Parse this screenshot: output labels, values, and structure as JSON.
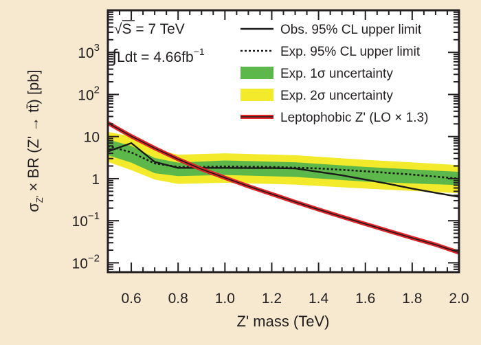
{
  "chart_data": {
    "type": "line",
    "title": "",
    "xlabel": "Z' mass (TeV)",
    "ylabel": "σZ' × BR (Z' → tt̄) [pb]",
    "xlim": [
      0.5,
      2.0
    ],
    "ylim": [
      0.006,
      10000
    ],
    "yscale": "log",
    "grid": false,
    "legend_position": "top-right",
    "x_ticks": [
      {
        "value": 0.6,
        "label": "0.6"
      },
      {
        "value": 0.8,
        "label": "0.8"
      },
      {
        "value": 1.0,
        "label": "1.0"
      },
      {
        "value": 1.2,
        "label": "1.2"
      },
      {
        "value": 1.4,
        "label": "1.4"
      },
      {
        "value": 1.6,
        "label": "1.6"
      },
      {
        "value": 1.8,
        "label": "1.8"
      },
      {
        "value": 2.0,
        "label": "2.0"
      }
    ],
    "y_ticks": [
      {
        "value": 0.01,
        "base": "10",
        "exp": "−2"
      },
      {
        "value": 0.1,
        "base": "10",
        "exp": "−1"
      },
      {
        "value": 1,
        "base": "1",
        "exp": ""
      },
      {
        "value": 10,
        "base": "10",
        "exp": ""
      },
      {
        "value": 100,
        "base": "10",
        "exp": "2"
      },
      {
        "value": 1000,
        "base": "10",
        "exp": "3"
      }
    ],
    "annotations": {
      "energy": {
        "root": "√",
        "text": "S = 7 TeV"
      },
      "luminosity": {
        "integral": "∫",
        "text": "Ldt = 4.66fb",
        "exp": "−1"
      }
    },
    "colors": {
      "background": "#f6e9cf",
      "plot_background": "#ffffff",
      "band_2sigma": "#f2ea2a",
      "band_1sigma": "#5cb84a",
      "observed": "#1a1a1a",
      "expected": "#1a1a1a",
      "theory_outer": "#e0242a",
      "theory_inner": "#1a1a1a"
    },
    "band_x": [
      0.5,
      0.6,
      0.7,
      0.8,
      1.0,
      1.3,
      1.6,
      2.0
    ],
    "band_2sigma_lo": [
      2.5,
      1.6,
      0.95,
      0.75,
      0.8,
      0.72,
      0.58,
      0.45
    ],
    "band_2sigma_hi": [
      13,
      10,
      5.0,
      3.7,
      4.0,
      3.6,
      2.8,
      2.1
    ],
    "band_1sigma_lo": [
      3.6,
      2.4,
      1.35,
      1.15,
      1.22,
      1.1,
      0.85,
      0.7
    ],
    "band_1sigma_hi": [
      8.5,
      6.0,
      3.1,
      2.4,
      2.7,
      2.45,
      1.9,
      1.45
    ],
    "series": [
      {
        "name": "Obs. 95% CL upper limit",
        "style": "solid",
        "x": [
          0.5,
          0.6,
          0.7,
          0.8,
          0.9,
          1.0,
          1.1,
          1.2,
          1.3,
          1.4,
          1.5,
          1.6,
          1.7,
          1.8,
          1.9,
          2.0
        ],
        "values": [
          4.4,
          7.0,
          2.5,
          1.8,
          1.8,
          1.8,
          1.78,
          1.78,
          1.75,
          1.45,
          1.2,
          0.95,
          0.75,
          0.58,
          0.46,
          0.37
        ]
      },
      {
        "name": "Exp. 95% CL upper limit",
        "style": "dotted",
        "x": [
          0.5,
          0.6,
          0.7,
          0.8,
          0.9,
          1.0,
          1.2,
          1.4,
          1.6,
          1.8,
          2.0
        ],
        "values": [
          6.0,
          4.2,
          2.3,
          1.9,
          1.9,
          1.95,
          1.9,
          1.75,
          1.5,
          1.25,
          1.0
        ]
      },
      {
        "name": "Exp. 1σ uncertainty",
        "style": "band_1sigma"
      },
      {
        "name": "Exp. 2σ uncertainty",
        "style": "band_2sigma"
      },
      {
        "name": "Leptophobic Z' (LO × 1.3)",
        "style": "theory",
        "x": [
          0.5,
          0.6,
          0.7,
          0.8,
          0.9,
          1.0,
          1.1,
          1.2,
          1.3,
          1.4,
          1.5,
          1.6,
          1.7,
          1.8,
          1.9,
          2.0
        ],
        "values": [
          21,
          10.2,
          5.3,
          2.9,
          1.68,
          1.05,
          0.66,
          0.43,
          0.28,
          0.185,
          0.124,
          0.084,
          0.057,
          0.039,
          0.027,
          0.0175
        ]
      }
    ],
    "legend": [
      {
        "key": "obs",
        "text": "Obs. 95% CL upper limit"
      },
      {
        "key": "exp",
        "text": "Exp. 95% CL upper limit"
      },
      {
        "key": "sig1",
        "label": "Exp. 1",
        "sym": "σ",
        "rest": "uncertainty"
      },
      {
        "key": "sig2",
        "label": "Exp. 2",
        "sym": "σ",
        "rest": "uncertainty"
      },
      {
        "key": "theory",
        "text": "Leptophobic Z' (LO × 1.3)"
      }
    ],
    "ylabel_parts": {
      "sigma": "σ",
      "sub": "Z'",
      "rest": " × BR (Z' → tt̄) [pb]"
    }
  }
}
